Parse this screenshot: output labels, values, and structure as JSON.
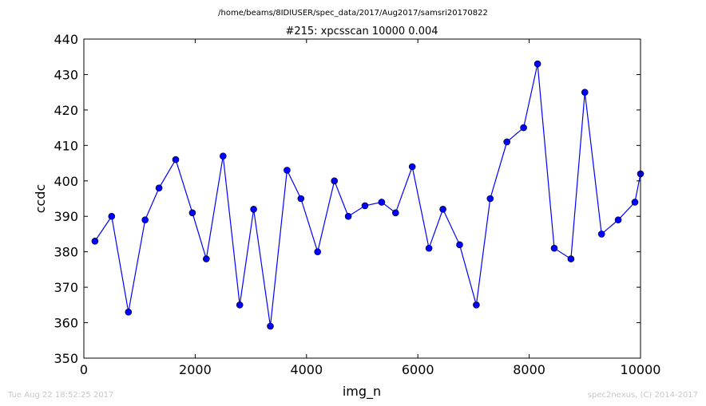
{
  "header": {
    "path": "/home/beams/8IDIUSER/spec_data/2017/Aug2017/samsri20170822"
  },
  "footer": {
    "timestamp": "Tue Aug 22 18:52:25 2017",
    "credit": "spec2nexus, (C) 2014-2017"
  },
  "chart_data": {
    "type": "line",
    "title": "#215: xpcsscan 10000 0.004",
    "xlabel": "img_n",
    "ylabel": "ccdc",
    "xlim": [
      0,
      10000
    ],
    "ylim": [
      350,
      440
    ],
    "xticks": [
      0,
      2000,
      4000,
      6000,
      8000,
      10000
    ],
    "yticks": [
      350,
      360,
      370,
      380,
      390,
      400,
      410,
      420,
      430,
      440
    ],
    "grid": false,
    "line_color": "#0000ff",
    "marker_color": "#0000ff",
    "x": [
      200,
      500,
      800,
      1100,
      1350,
      1650,
      1950,
      2200,
      2500,
      2800,
      3050,
      3350,
      3650,
      3900,
      4200,
      4500,
      4750,
      5050,
      5350,
      5600,
      5900,
      6200,
      6450,
      6750,
      7050,
      7300,
      7600,
      7900,
      8150,
      8450,
      8750,
      9000,
      9300,
      9600,
      9900,
      10000
    ],
    "y": [
      383,
      390,
      363,
      389,
      398,
      406,
      391,
      378,
      407,
      365,
      392,
      359,
      403,
      395,
      380,
      400,
      390,
      393,
      394,
      391,
      404,
      381,
      392,
      382,
      365,
      395,
      411,
      415,
      433,
      381,
      378,
      425,
      385,
      389,
      394,
      402
    ]
  }
}
